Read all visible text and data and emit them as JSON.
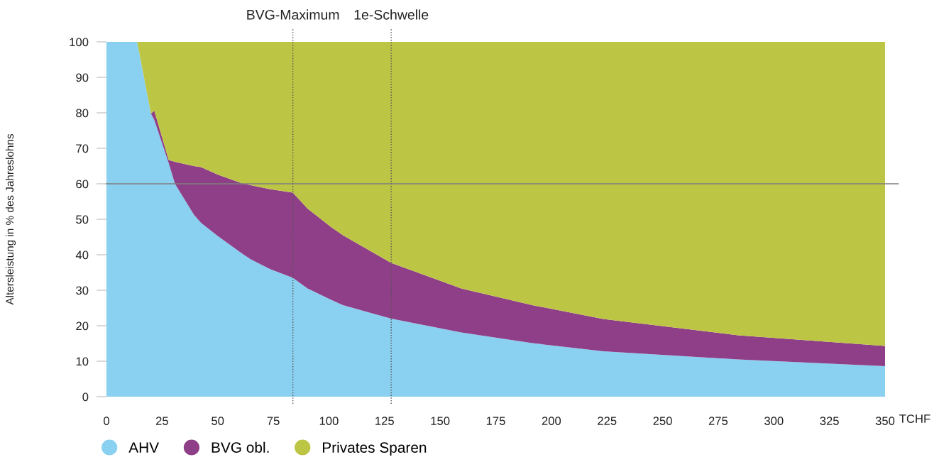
{
  "chart_data": {
    "type": "area",
    "stacked": true,
    "xlabel": "TCHF",
    "ylabel": "Altersleistung in % des Jahreslohns",
    "x": [
      0,
      13.8,
      20,
      21.5,
      28,
      30.8,
      39.3,
      42.5,
      50,
      60.6,
      64.9,
      73.4,
      83.8,
      90.4,
      101,
      106.3,
      128,
      159.5,
      191.4,
      223.3,
      284,
      350
    ],
    "series": [
      {
        "name": "AHV",
        "color": "#8ad0f0",
        "values": [
          100,
          100,
          79.8,
          78,
          65.8,
          60,
          51.3,
          49,
          45.3,
          40.5,
          38.7,
          36,
          33.5,
          30.5,
          27.3,
          25.8,
          22,
          18.1,
          15.1,
          12.8,
          10.5,
          8.6
        ]
      },
      {
        "name": "BVG obl.",
        "color": "#8f3f87",
        "values": [
          0,
          0,
          0,
          2.6,
          0.9,
          6.2,
          13.7,
          15.7,
          17.3,
          19.7,
          20.9,
          22.5,
          24,
          22.5,
          20.5,
          19.7,
          15.7,
          12.4,
          10.7,
          9.1,
          6.8,
          5.7
        ]
      },
      {
        "name": "Privates Sparen",
        "color": "#bdc545",
        "values": [
          0,
          0,
          20.2,
          19.4,
          33.3,
          33.8,
          35,
          35.3,
          37.4,
          39.8,
          40.4,
          41.5,
          42.5,
          47,
          52.2,
          54.5,
          62.3,
          69.5,
          74.2,
          78.1,
          82.7,
          85.7
        ]
      }
    ],
    "xlim": [
      0,
      350
    ],
    "xticks": [
      0,
      25,
      50,
      75,
      100,
      125,
      150,
      175,
      200,
      225,
      250,
      275,
      300,
      325,
      350
    ],
    "ylim": [
      0,
      100
    ],
    "yticks": [
      0,
      10,
      20,
      30,
      40,
      50,
      60,
      70,
      80,
      90,
      100
    ],
    "ref_lines": [
      {
        "axis": "y",
        "value": 60,
        "color": "#7f7f7f",
        "line_style": "solid"
      },
      {
        "axis": "x",
        "value": 83.8,
        "label": "BVG-Maximum",
        "color": "#555555",
        "line_style": "dotted"
      },
      {
        "axis": "x",
        "value": 128,
        "label": "1e-Schwelle",
        "color": "#555555",
        "line_style": "dotted"
      }
    ],
    "grid": false,
    "legend": "bottom left"
  }
}
